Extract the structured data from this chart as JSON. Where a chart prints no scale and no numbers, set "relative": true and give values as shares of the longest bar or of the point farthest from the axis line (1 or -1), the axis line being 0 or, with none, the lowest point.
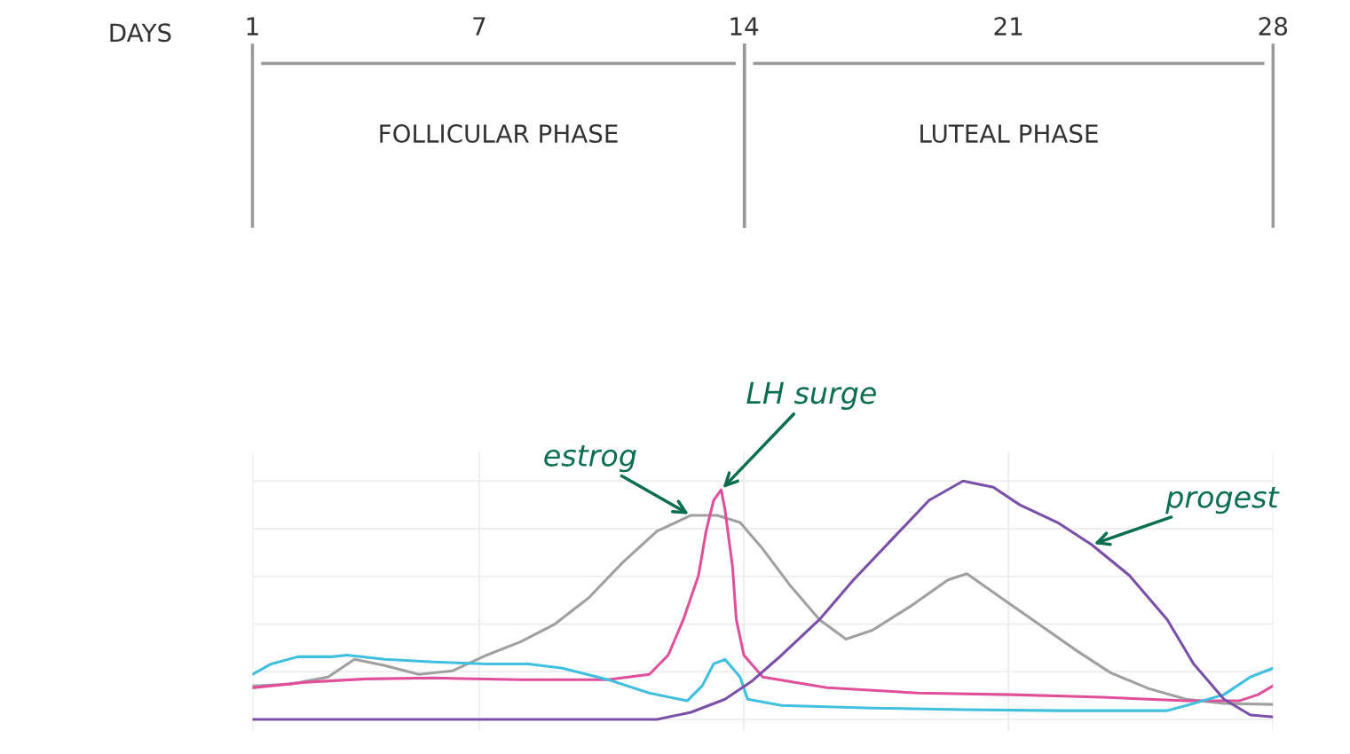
{
  "chart_data": {
    "type": "line",
    "relative": true,
    "xlabel": "DAYS",
    "xlim": [
      1,
      28
    ],
    "xticks": [
      1,
      7,
      14,
      21,
      28
    ],
    "grid": true,
    "line_style": "solid",
    "marker": "none",
    "series": [
      {
        "color": "#a0a0a0",
        "x": [
          1,
          2.0,
          3.0,
          3.7,
          4.5,
          5.4,
          6.3,
          7.2,
          8.1,
          9.0,
          9.9,
          10.8,
          11.7,
          12.6,
          13.3,
          13.9,
          14.5,
          15.2,
          16.0,
          16.7,
          17.4,
          18.4,
          19.4,
          19.9,
          20.8,
          21.8,
          22.8,
          23.7,
          24.7,
          25.7,
          26.7,
          28
        ],
        "values": [
          0.141,
          0.148,
          0.178,
          0.252,
          0.226,
          0.189,
          0.204,
          0.27,
          0.326,
          0.4,
          0.511,
          0.659,
          0.789,
          0.856,
          0.856,
          0.826,
          0.715,
          0.567,
          0.419,
          0.337,
          0.374,
          0.474,
          0.585,
          0.611,
          0.511,
          0.4,
          0.289,
          0.196,
          0.13,
          0.085,
          0.067,
          0.063
        ]
      },
      {
        "color": "#e0509a",
        "x": [
          1,
          2.4,
          4.0,
          5.8,
          8.1,
          10.4,
          11.5,
          12.0,
          12.4,
          12.8,
          13.0,
          13.2,
          13.4,
          13.5,
          13.7,
          13.8,
          14.0,
          14.5,
          16.2,
          18.6,
          21.1,
          23.5,
          25.7,
          27.1,
          27.6,
          28
        ],
        "values": [
          0.133,
          0.156,
          0.17,
          0.174,
          0.167,
          0.167,
          0.189,
          0.27,
          0.419,
          0.604,
          0.789,
          0.919,
          0.963,
          0.881,
          0.641,
          0.419,
          0.27,
          0.178,
          0.133,
          0.111,
          0.104,
          0.093,
          0.078,
          0.078,
          0.104,
          0.141
        ]
      },
      {
        "color": "#40c0e0",
        "x": [
          1,
          1.5,
          2.2,
          3.1,
          3.5,
          4.5,
          5.8,
          7.2,
          8.3,
          9.2,
          10.4,
          11.5,
          12.5,
          12.9,
          13.2,
          13.5,
          13.9,
          14.1,
          15.0,
          17.4,
          19.8,
          22.3,
          25.2,
          25.9,
          26.7,
          27.4,
          28
        ],
        "values": [
          0.189,
          0.233,
          0.263,
          0.263,
          0.27,
          0.252,
          0.241,
          0.233,
          0.233,
          0.215,
          0.167,
          0.111,
          0.078,
          0.141,
          0.233,
          0.252,
          0.178,
          0.085,
          0.059,
          0.048,
          0.041,
          0.037,
          0.037,
          0.067,
          0.104,
          0.178,
          0.215
        ]
      },
      {
        "color": "#7a4fa8",
        "x": [
          1,
          5.8,
          11.7,
          12.6,
          13.5,
          14.2,
          15.0,
          16.0,
          16.9,
          17.9,
          18.9,
          19.8,
          20.6,
          21.3,
          22.3,
          23.2,
          24.2,
          25.2,
          25.9,
          26.7,
          27.4,
          28
        ],
        "values": [
          0,
          0,
          0,
          0.03,
          0.085,
          0.159,
          0.27,
          0.419,
          0.585,
          0.752,
          0.919,
          1,
          0.974,
          0.9,
          0.826,
          0.733,
          0.604,
          0.419,
          0.233,
          0.085,
          0.019,
          0.011
        ]
      }
    ],
    "annotations": [
      "FOLLICULAR PHASE",
      "LUTEAL PHASE",
      {
        "text": "estrog",
        "x": 12.6,
        "y": 0.856
      },
      {
        "text": "LH surge",
        "x": 13.4,
        "y": 0.963
      },
      {
        "text": "progest",
        "x": 23.2,
        "y": 0.733
      }
    ]
  }
}
